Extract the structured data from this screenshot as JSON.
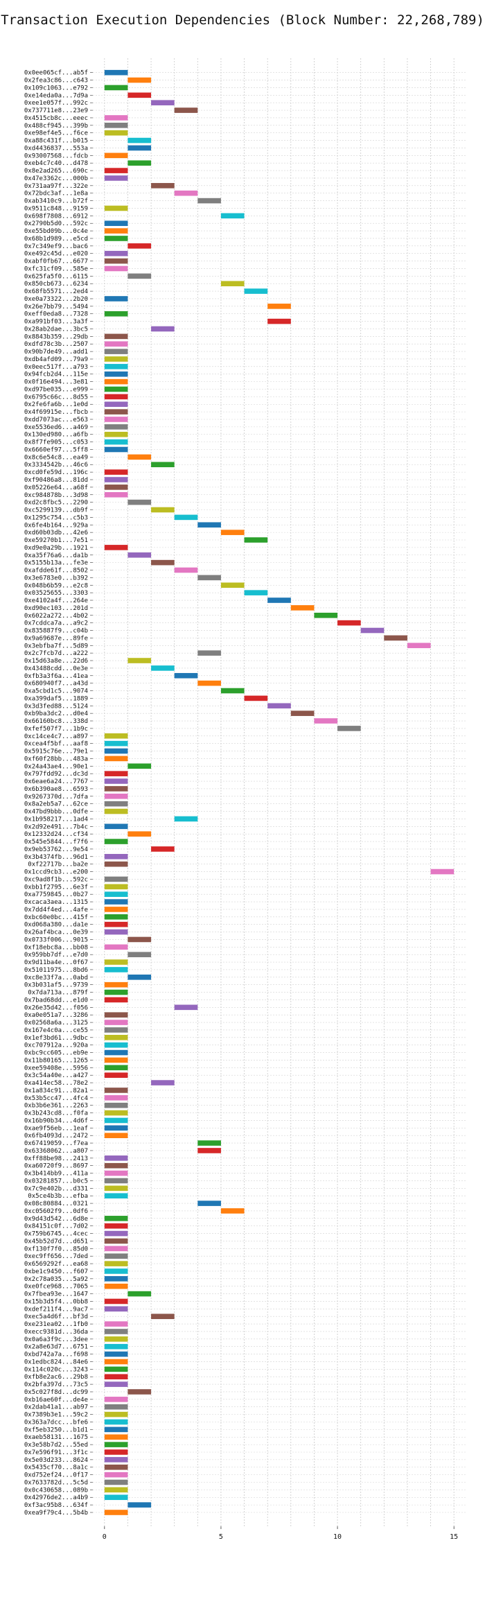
{
  "chart_data": {
    "type": "bar",
    "orientation": "horizontal",
    "title": "Transaction Execution Dependencies (Block Number: 22,268,789)",
    "xlabel": "",
    "ylabel": "",
    "xlim": [
      -0.5,
      15.5
    ],
    "xticks": [
      0,
      5,
      10,
      15
    ],
    "grid": true,
    "legend": "none",
    "palette": [
      "#1f77b4",
      "#ff7f0e",
      "#2ca02c",
      "#d62728",
      "#9467bd",
      "#8c564b",
      "#e377c2",
      "#7f7f7f",
      "#bcbd22",
      "#17becf"
    ],
    "rows": [
      {
        "label": "0x0ee065cf...ab5f",
        "start": 0
      },
      {
        "label": "0x2fea3c86...c643",
        "start": 1
      },
      {
        "label": "0x109c1063...e792",
        "start": 0
      },
      {
        "label": "0xe14eda0a...7d9a",
        "start": 1
      },
      {
        "label": "0xee1e057f...992c",
        "start": 2
      },
      {
        "label": "0x737711e8...23e9",
        "start": 3
      },
      {
        "label": "0x4515cb8c...eeec",
        "start": 0
      },
      {
        "label": "0x488cf945...399b",
        "start": 0
      },
      {
        "label": "0xe98ef4e5...f6ce",
        "start": 0
      },
      {
        "label": "0xa88c431f...b015",
        "start": 1
      },
      {
        "label": "0xd4436837...553a",
        "start": 1
      },
      {
        "label": "0x93007568...fdcb",
        "start": 0
      },
      {
        "label": "0xeb4c7c40...d478",
        "start": 1
      },
      {
        "label": "0x8e2ad265...690c",
        "start": 0
      },
      {
        "label": "0x47e3362c...000b",
        "start": 0
      },
      {
        "label": "0x731aa97f...322e",
        "start": 2
      },
      {
        "label": "0x72bdc3af...1e8a",
        "start": 3
      },
      {
        "label": "0xab3410c9...b72f",
        "start": 4
      },
      {
        "label": "0x9511c848...9159",
        "start": 0
      },
      {
        "label": "0x698f7808...6912",
        "start": 5
      },
      {
        "label": "0x2790b5d0...592c",
        "start": 0
      },
      {
        "label": "0xe55bd09b...0c4e",
        "start": 0
      },
      {
        "label": "0x68b1d989...e5cd",
        "start": 0
      },
      {
        "label": "0x7c349ef9...bac6",
        "start": 1
      },
      {
        "label": "0xe492c45d...e020",
        "start": 0
      },
      {
        "label": "0xabf0fb67...6677",
        "start": 0
      },
      {
        "label": "0xfc31cf09...585e",
        "start": 0
      },
      {
        "label": "0x625fa5f0...6115",
        "start": 1
      },
      {
        "label": "0x850cb673...6234",
        "start": 5
      },
      {
        "label": "0x68fb5571...2ed4",
        "start": 6
      },
      {
        "label": "0xe0a73322...2b20",
        "start": 0
      },
      {
        "label": "0x26e7bb79...5494",
        "start": 7
      },
      {
        "label": "0xeff0eda8...7328",
        "start": 0
      },
      {
        "label": "0xa991bf03...3a3f",
        "start": 7
      },
      {
        "label": "0x28ab2dae...3bc5",
        "start": 2
      },
      {
        "label": "0x8843b359...29db",
        "start": 0
      },
      {
        "label": "0xdfd78c3b...2507",
        "start": 0
      },
      {
        "label": "0x90b7de49...add1",
        "start": 0
      },
      {
        "label": "0xdb4afd09...79a9",
        "start": 0
      },
      {
        "label": "0x0eec517f...a793",
        "start": 0
      },
      {
        "label": "0x94fcb2d4...115e",
        "start": 0
      },
      {
        "label": "0x0f16e494...3e81",
        "start": 0
      },
      {
        "label": "0xd97be035...e999",
        "start": 0
      },
      {
        "label": "0x6795c66c...8d55",
        "start": 0
      },
      {
        "label": "0x2fe6fa6b...1e0d",
        "start": 0
      },
      {
        "label": "0x4f69915e...fbcb",
        "start": 0
      },
      {
        "label": "0xdd7073ac...e563",
        "start": 0
      },
      {
        "label": "0xe5536ed6...a469",
        "start": 0
      },
      {
        "label": "0x130ed980...a6fb",
        "start": 0
      },
      {
        "label": "0x8f7fe905...c053",
        "start": 0
      },
      {
        "label": "0x6660ef97...5ff8",
        "start": 0
      },
      {
        "label": "0x8c6e54c8...ea49",
        "start": 1
      },
      {
        "label": "0x3334542b...46c6",
        "start": 2
      },
      {
        "label": "0xcd0fe59d...196c",
        "start": 0
      },
      {
        "label": "0xf90486a8...81dd",
        "start": 0
      },
      {
        "label": "0x05226e64...a68f",
        "start": 0
      },
      {
        "label": "0xc984878b...3d98",
        "start": 0
      },
      {
        "label": "0xd2c8fbc5...2290",
        "start": 1
      },
      {
        "label": "0xc5299139...db9f",
        "start": 2
      },
      {
        "label": "0x1295c754...c5b3",
        "start": 3
      },
      {
        "label": "0x6fe4b164...929a",
        "start": 4
      },
      {
        "label": "0xd60b03db...42e6",
        "start": 5
      },
      {
        "label": "0xe59270b1...7e51",
        "start": 6
      },
      {
        "label": "0xd9e0a29b...1921",
        "start": 0
      },
      {
        "label": "0xa35f76a6...da1b",
        "start": 1
      },
      {
        "label": "0x5155b13a...fe3e",
        "start": 2
      },
      {
        "label": "0xafdde61f...8502",
        "start": 3
      },
      {
        "label": "0x3e6783e0...b392",
        "start": 4
      },
      {
        "label": "0x048b6b59...e2c8",
        "start": 5
      },
      {
        "label": "0x03525655...3303",
        "start": 6
      },
      {
        "label": "0xe4102a4f...264e",
        "start": 7
      },
      {
        "label": "0xd90ec103...201d",
        "start": 8
      },
      {
        "label": "0x6022a272...4b02",
        "start": 9
      },
      {
        "label": "0x7cddca7a...a9c2",
        "start": 10
      },
      {
        "label": "0x835887f9...c04b",
        "start": 11
      },
      {
        "label": "0x9a69687e...89fe",
        "start": 12
      },
      {
        "label": "0x3ebfba7f...5d89",
        "start": 13
      },
      {
        "label": "0x2c7fcb7d...a222",
        "start": 4
      },
      {
        "label": "0x15d63a8e...22d6",
        "start": 1
      },
      {
        "label": "0x43488cdd...0e3e",
        "start": 2
      },
      {
        "label": "0xfb3a3f6a...41ea",
        "start": 3
      },
      {
        "label": "0x680940f7...a43d",
        "start": 4
      },
      {
        "label": "0xa5cbd1c5...9074",
        "start": 5
      },
      {
        "label": "0xa399daf5...1889",
        "start": 6
      },
      {
        "label": "0x3d3fed88...5124",
        "start": 7
      },
      {
        "label": "0xb9ba3dc2...d0e4",
        "start": 8
      },
      {
        "label": "0x66160bc8...338d",
        "start": 9
      },
      {
        "label": "0xfef507f7...1b9c",
        "start": 10
      },
      {
        "label": "0xc14ce4c7...a897",
        "start": 0
      },
      {
        "label": "0xcea4f5bf...aaf8",
        "start": 0
      },
      {
        "label": "0x5915c76e...79e1",
        "start": 0
      },
      {
        "label": "0xf60f28bb...483a",
        "start": 0
      },
      {
        "label": "0x24a43ae4...90e1",
        "start": 1
      },
      {
        "label": "0x797fdd92...dc3d",
        "start": 0
      },
      {
        "label": "0x6eae6a24...7767",
        "start": 0
      },
      {
        "label": "0x6b390ae8...6593",
        "start": 0
      },
      {
        "label": "0x9267370d...7dfa",
        "start": 0
      },
      {
        "label": "0x8a2eb5a7...62ce",
        "start": 0
      },
      {
        "label": "0x47bd9bbb...0dfe",
        "start": 0
      },
      {
        "label": "0x1b958217...1ad4",
        "start": 3
      },
      {
        "label": "0x2d92e491...7b4c",
        "start": 0
      },
      {
        "label": "0x12332d24...cf34",
        "start": 1
      },
      {
        "label": "0x545e5844...f7f6",
        "start": 0
      },
      {
        "label": "0x9eb53762...9e54",
        "start": 2
      },
      {
        "label": "0x3b4374fb...96d1",
        "start": 0
      },
      {
        "label": "0xf22717b...ba2e",
        "start": 0
      },
      {
        "label": "0x1ccd9cb3...e200",
        "start": 14
      },
      {
        "label": "0xc9ad8f1b...592c",
        "start": 0
      },
      {
        "label": "0xbb1f2795...6e3f",
        "start": 0
      },
      {
        "label": "0xa7759845...0b27",
        "start": 0
      },
      {
        "label": "0xcaca3aea...1315",
        "start": 0
      },
      {
        "label": "0x7dd4f4ed...4afe",
        "start": 0
      },
      {
        "label": "0xbc60e0bc...415f",
        "start": 0
      },
      {
        "label": "0xd068a380...da1e",
        "start": 0
      },
      {
        "label": "0x26af4bca...0e39",
        "start": 0
      },
      {
        "label": "0x0733f006...9015",
        "start": 1
      },
      {
        "label": "0xf18ebc8a...bb08",
        "start": 0
      },
      {
        "label": "0x959bb7df...e7d0",
        "start": 1
      },
      {
        "label": "0x9d11ba4e...0f67",
        "start": 0
      },
      {
        "label": "0x51011975...8bd6",
        "start": 0
      },
      {
        "label": "0xc8e33f7a...0abd",
        "start": 1
      },
      {
        "label": "0x3b031af5...9739",
        "start": 0
      },
      {
        "label": "0x7da713a...879f",
        "start": 0
      },
      {
        "label": "0x7bad68dd...e1d0",
        "start": 0
      },
      {
        "label": "0x26e35d42...f056",
        "start": 3
      },
      {
        "label": "0xa0e051a7...3286",
        "start": 0
      },
      {
        "label": "0x02568a6a...3125",
        "start": 0
      },
      {
        "label": "0x167e4c0a...ce55",
        "start": 0
      },
      {
        "label": "0x1ef3bd61...9dbc",
        "start": 0
      },
      {
        "label": "0xc707912a...920a",
        "start": 0
      },
      {
        "label": "0xbc9cc605...eb9e",
        "start": 0
      },
      {
        "label": "0x11b80165...1265",
        "start": 0
      },
      {
        "label": "0xee59408e...5956",
        "start": 0
      },
      {
        "label": "0x3c54a40e...a427",
        "start": 0
      },
      {
        "label": "0xa414ec58...78e2",
        "start": 2
      },
      {
        "label": "0x1a834c91...82a1",
        "start": 0
      },
      {
        "label": "0x53b5cc47...4fc4",
        "start": 0
      },
      {
        "label": "0xb3b6e361...2263",
        "start": 0
      },
      {
        "label": "0x3b243cd8...f0fa",
        "start": 0
      },
      {
        "label": "0x16b90b34...4d6f",
        "start": 0
      },
      {
        "label": "0xae9f56eb...1eaf",
        "start": 0
      },
      {
        "label": "0x6fb4093d...2472",
        "start": 0
      },
      {
        "label": "0x67419059...f7ea",
        "start": 4
      },
      {
        "label": "0x63368062...a807",
        "start": 4
      },
      {
        "label": "0xff88be98...2413",
        "start": 0
      },
      {
        "label": "0xa60720f9...8697",
        "start": 0
      },
      {
        "label": "0x3b414bb9...411a",
        "start": 0
      },
      {
        "label": "0x03281857...b0c5",
        "start": 0
      },
      {
        "label": "0x7c9e402b...d331",
        "start": 0
      },
      {
        "label": "0x5ce4b3b...efba",
        "start": 0
      },
      {
        "label": "0x08c80884...0321",
        "start": 4
      },
      {
        "label": "0xc05602f9...0df6",
        "start": 5
      },
      {
        "label": "0x9d43d542...6d8e",
        "start": 0
      },
      {
        "label": "0x84151c0f...7d02",
        "start": 0
      },
      {
        "label": "0x759b6745...4cec",
        "start": 0
      },
      {
        "label": "0x45b52d7d...d651",
        "start": 0
      },
      {
        "label": "0xf130f7f0...85d0",
        "start": 0
      },
      {
        "label": "0xec9ff656...7ded",
        "start": 0
      },
      {
        "label": "0x6569292f...ea68",
        "start": 0
      },
      {
        "label": "0xbe1c9450...f607",
        "start": 0
      },
      {
        "label": "0x2c78a035...5a92",
        "start": 0
      },
      {
        "label": "0xe0fce968...7065",
        "start": 0
      },
      {
        "label": "0x7fbea93e...1647",
        "start": 1
      },
      {
        "label": "0x15b3d5f4...0bb8",
        "start": 0
      },
      {
        "label": "0xdef211f4...9ac7",
        "start": 0
      },
      {
        "label": "0xec5a4d6f...bf3d",
        "start": 2
      },
      {
        "label": "0xe231ea02...1fb0",
        "start": 0
      },
      {
        "label": "0xecc9381d...36da",
        "start": 0
      },
      {
        "label": "0x0a6a3f9c...3dee",
        "start": 0
      },
      {
        "label": "0x2a8e63d7...6751",
        "start": 0
      },
      {
        "label": "0xbd742a7a...f698",
        "start": 0
      },
      {
        "label": "0x1edbc824...84e6",
        "start": 0
      },
      {
        "label": "0x114c020c...3243",
        "start": 0
      },
      {
        "label": "0xfb8e2ac6...29b8",
        "start": 0
      },
      {
        "label": "0x2bfa397d...73c5",
        "start": 0
      },
      {
        "label": "0x5c027f8d...dc99",
        "start": 1
      },
      {
        "label": "0xb16ae60f...de4e",
        "start": 0
      },
      {
        "label": "0x2dab41a1...ab97",
        "start": 0
      },
      {
        "label": "0x7389b3e1...59c2",
        "start": 0
      },
      {
        "label": "0x363a7dcc...bfe6",
        "start": 0
      },
      {
        "label": "0xf5eb3250...b1d1",
        "start": 0
      },
      {
        "label": "0xaeb58131...1675",
        "start": 0
      },
      {
        "label": "0x3e58b7d2...55ed",
        "start": 0
      },
      {
        "label": "0x7e596f91...3f1c",
        "start": 0
      },
      {
        "label": "0x5e03d233...8624",
        "start": 0
      },
      {
        "label": "0x5435cf70...8a1c",
        "start": 0
      },
      {
        "label": "0xd752ef24...0f17",
        "start": 0
      },
      {
        "label": "0x7633782d...5c5d",
        "start": 0
      },
      {
        "label": "0x0c430658...089b",
        "start": 0
      },
      {
        "label": "0x42976de2...a4b9",
        "start": 0
      },
      {
        "label": "0xf3ac95b8...634f",
        "start": 1
      },
      {
        "label": "0xea9f79c4...5b4b",
        "start": 0
      }
    ]
  }
}
